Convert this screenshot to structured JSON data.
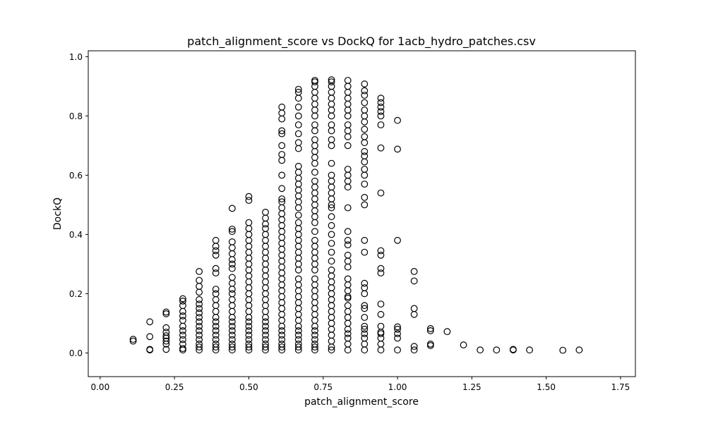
{
  "chart_data": {
    "type": "scatter",
    "title": "patch_alignment_score vs DockQ for 1acb_hydro_patches.csv",
    "xlabel": "patch_alignment_score",
    "ylabel": "DockQ",
    "xlim": [
      -0.04,
      1.8
    ],
    "ylim": [
      -0.08,
      1.02
    ],
    "xticks": [
      0.0,
      0.25,
      0.5,
      0.75,
      1.0,
      1.25,
      1.5,
      1.75
    ],
    "xtick_labels": [
      "0.00",
      "0.25",
      "0.50",
      "0.75",
      "1.00",
      "1.25",
      "1.50",
      "1.75"
    ],
    "yticks": [
      0.0,
      0.2,
      0.4,
      0.6,
      0.8,
      1.0
    ],
    "ytick_labels": [
      "0.0",
      "0.2",
      "0.4",
      "0.6",
      "0.8",
      "1.0"
    ],
    "grid": false,
    "legend": "none",
    "marker": {
      "shape": "circle",
      "face": "none",
      "edge_color": "#000000"
    },
    "columns": [
      {
        "x": 0.111,
        "y": [
          0.04,
          0.046
        ]
      },
      {
        "x": 0.167,
        "y": [
          0.01,
          0.012,
          0.055,
          0.105
        ]
      },
      {
        "x": 0.222,
        "y": [
          0.012,
          0.03,
          0.04,
          0.05,
          0.058,
          0.07,
          0.085,
          0.132,
          0.138
        ]
      },
      {
        "x": 0.278,
        "y": [
          0.01,
          0.015,
          0.03,
          0.045,
          0.06,
          0.075,
          0.09,
          0.11,
          0.125,
          0.14,
          0.16,
          0.175,
          0.183
        ]
      },
      {
        "x": 0.333,
        "y": [
          0.01,
          0.02,
          0.03,
          0.045,
          0.06,
          0.075,
          0.09,
          0.105,
          0.12,
          0.135,
          0.15,
          0.165,
          0.18,
          0.205,
          0.225,
          0.245,
          0.275
        ]
      },
      {
        "x": 0.389,
        "y": [
          0.01,
          0.02,
          0.03,
          0.045,
          0.06,
          0.075,
          0.09,
          0.105,
          0.12,
          0.14,
          0.16,
          0.18,
          0.2,
          0.215,
          0.27,
          0.285,
          0.33,
          0.345,
          0.36,
          0.38
        ]
      },
      {
        "x": 0.444,
        "y": [
          0.01,
          0.02,
          0.03,
          0.045,
          0.06,
          0.075,
          0.09,
          0.105,
          0.12,
          0.14,
          0.16,
          0.18,
          0.2,
          0.215,
          0.235,
          0.255,
          0.285,
          0.3,
          0.315,
          0.335,
          0.355,
          0.375,
          0.41,
          0.418,
          0.488
        ]
      },
      {
        "x": 0.5,
        "y": [
          0.01,
          0.02,
          0.03,
          0.045,
          0.06,
          0.075,
          0.09,
          0.105,
          0.12,
          0.14,
          0.16,
          0.18,
          0.2,
          0.22,
          0.24,
          0.26,
          0.28,
          0.3,
          0.32,
          0.34,
          0.36,
          0.38,
          0.4,
          0.42,
          0.44,
          0.515,
          0.528
        ]
      },
      {
        "x": 0.556,
        "y": [
          0.01,
          0.02,
          0.03,
          0.045,
          0.06,
          0.075,
          0.09,
          0.105,
          0.12,
          0.14,
          0.16,
          0.18,
          0.2,
          0.22,
          0.24,
          0.26,
          0.28,
          0.3,
          0.32,
          0.34,
          0.36,
          0.38,
          0.4,
          0.42,
          0.435,
          0.455,
          0.475
        ]
      },
      {
        "x": 0.611,
        "y": [
          0.01,
          0.02,
          0.03,
          0.045,
          0.06,
          0.075,
          0.09,
          0.11,
          0.13,
          0.15,
          0.17,
          0.19,
          0.21,
          0.23,
          0.25,
          0.27,
          0.29,
          0.31,
          0.33,
          0.35,
          0.37,
          0.39,
          0.41,
          0.43,
          0.45,
          0.47,
          0.49,
          0.51,
          0.52,
          0.555,
          0.6,
          0.65,
          0.67,
          0.7,
          0.74,
          0.75,
          0.79,
          0.81,
          0.83
        ]
      },
      {
        "x": 0.667,
        "y": [
          0.01,
          0.02,
          0.03,
          0.045,
          0.06,
          0.075,
          0.09,
          0.11,
          0.13,
          0.15,
          0.17,
          0.19,
          0.21,
          0.23,
          0.25,
          0.28,
          0.3,
          0.32,
          0.34,
          0.36,
          0.38,
          0.4,
          0.42,
          0.44,
          0.465,
          0.49,
          0.51,
          0.53,
          0.55,
          0.57,
          0.59,
          0.61,
          0.63,
          0.69,
          0.71,
          0.74,
          0.77,
          0.8,
          0.83,
          0.86,
          0.88,
          0.89
        ]
      },
      {
        "x": 0.722,
        "y": [
          0.01,
          0.02,
          0.03,
          0.045,
          0.06,
          0.075,
          0.09,
          0.11,
          0.13,
          0.15,
          0.17,
          0.19,
          0.21,
          0.23,
          0.25,
          0.28,
          0.3,
          0.32,
          0.34,
          0.36,
          0.38,
          0.41,
          0.44,
          0.46,
          0.48,
          0.5,
          0.52,
          0.54,
          0.56,
          0.58,
          0.61,
          0.64,
          0.66,
          0.68,
          0.7,
          0.72,
          0.75,
          0.77,
          0.8,
          0.82,
          0.84,
          0.86,
          0.88,
          0.9,
          0.915,
          0.92
        ]
      },
      {
        "x": 0.778,
        "y": [
          0.01,
          0.02,
          0.04,
          0.06,
          0.08,
          0.1,
          0.12,
          0.14,
          0.16,
          0.18,
          0.2,
          0.22,
          0.24,
          0.26,
          0.28,
          0.31,
          0.34,
          0.37,
          0.4,
          0.43,
          0.46,
          0.49,
          0.5,
          0.52,
          0.54,
          0.56,
          0.58,
          0.6,
          0.64,
          0.7,
          0.72,
          0.75,
          0.77,
          0.8,
          0.82,
          0.84,
          0.86,
          0.88,
          0.9,
          0.915,
          0.922
        ]
      },
      {
        "x": 0.833,
        "y": [
          0.01,
          0.03,
          0.05,
          0.065,
          0.08,
          0.1,
          0.12,
          0.14,
          0.16,
          0.185,
          0.19,
          0.21,
          0.23,
          0.25,
          0.29,
          0.31,
          0.33,
          0.365,
          0.38,
          0.41,
          0.49,
          0.56,
          0.58,
          0.6,
          0.62,
          0.7,
          0.73,
          0.75,
          0.77,
          0.8,
          0.82,
          0.84,
          0.86,
          0.88,
          0.9,
          0.92
        ]
      },
      {
        "x": 0.889,
        "y": [
          0.01,
          0.03,
          0.05,
          0.065,
          0.08,
          0.09,
          0.12,
          0.15,
          0.16,
          0.2,
          0.22,
          0.235,
          0.34,
          0.38,
          0.5,
          0.525,
          0.57,
          0.6,
          0.62,
          0.645,
          0.665,
          0.68,
          0.71,
          0.73,
          0.755,
          0.78,
          0.8,
          0.82,
          0.845,
          0.87,
          0.885,
          0.908
        ]
      },
      {
        "x": 0.944,
        "y": [
          0.01,
          0.03,
          0.05,
          0.065,
          0.07,
          0.09,
          0.13,
          0.165,
          0.27,
          0.285,
          0.33,
          0.345,
          0.54,
          0.692,
          0.77,
          0.8,
          0.815,
          0.83,
          0.845,
          0.86
        ]
      },
      {
        "x": 1.0,
        "y": [
          0.01,
          0.05,
          0.065,
          0.08,
          0.088,
          0.38,
          0.688,
          0.785
        ]
      },
      {
        "x": 1.056,
        "y": [
          0.01,
          0.022,
          0.13,
          0.15,
          0.243,
          0.275
        ]
      },
      {
        "x": 1.111,
        "y": [
          0.025,
          0.03,
          0.075,
          0.082
        ]
      },
      {
        "x": 1.167,
        "y": [
          0.072
        ]
      },
      {
        "x": 1.222,
        "y": [
          0.027
        ]
      },
      {
        "x": 1.278,
        "y": [
          0.01
        ]
      },
      {
        "x": 1.333,
        "y": [
          0.01
        ]
      },
      {
        "x": 1.389,
        "y": [
          0.01,
          0.012
        ]
      },
      {
        "x": 1.444,
        "y": [
          0.01
        ]
      },
      {
        "x": 1.556,
        "y": [
          0.009
        ]
      },
      {
        "x": 1.611,
        "y": [
          0.01
        ]
      }
    ]
  }
}
